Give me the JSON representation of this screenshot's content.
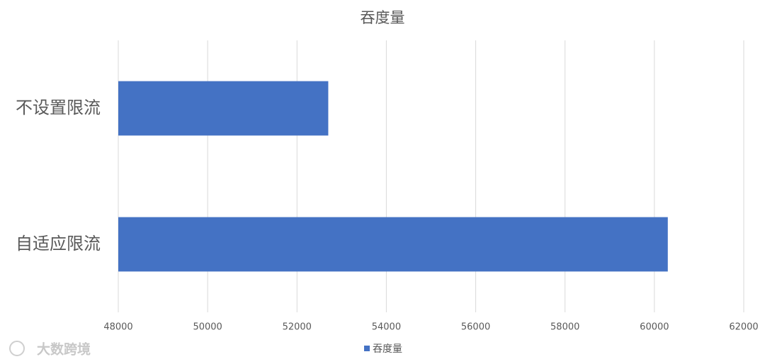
{
  "chart_data": {
    "type": "hbar",
    "title": "吞度量",
    "categories": [
      "不设置限流",
      "自适应限流"
    ],
    "series": [
      {
        "name": "吞度量",
        "color": "#4472c4",
        "values": [
          52700,
          60300
        ]
      }
    ],
    "xlim": [
      48000,
      62000
    ],
    "xticks": [
      48000,
      50000,
      52000,
      54000,
      56000,
      58000,
      60000,
      62000
    ],
    "grid": true,
    "legend": "bottom",
    "watermark": "大数跨境"
  }
}
